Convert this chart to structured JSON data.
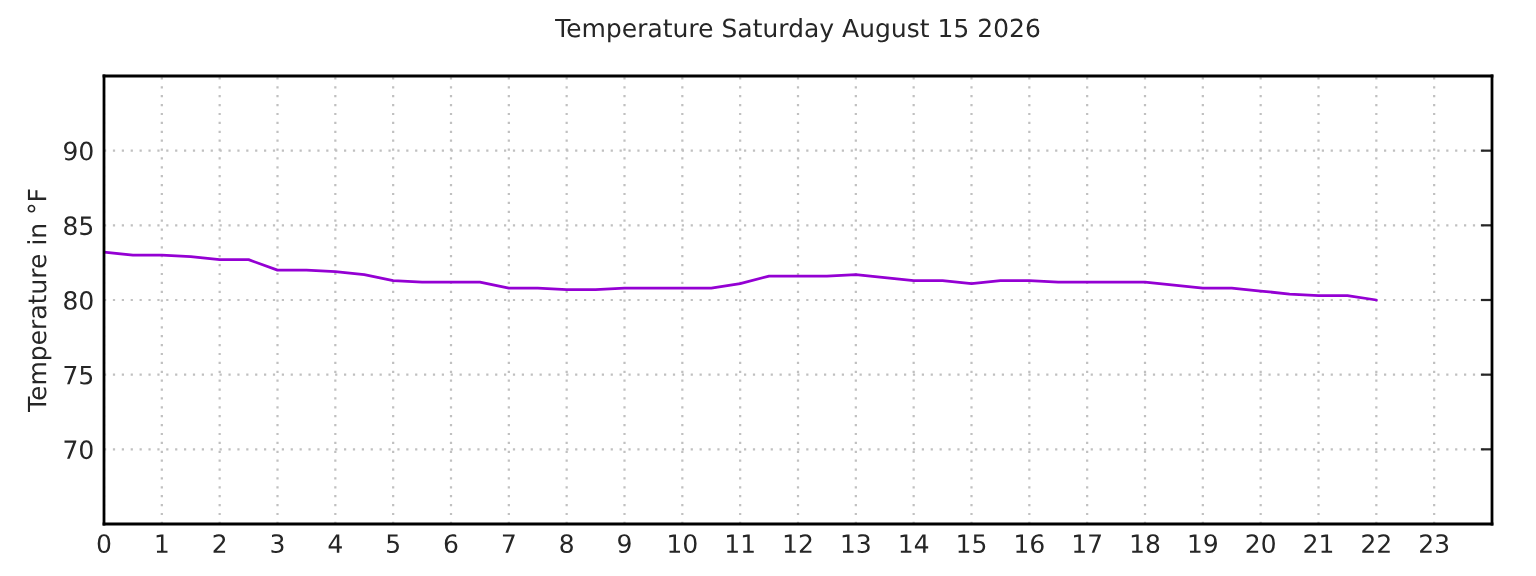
{
  "chart_data": {
    "type": "line",
    "title": "Temperature Saturday August 15 2026",
    "ylabel": "Temperature in °F",
    "x": [
      0,
      0.5,
      1,
      1.5,
      2,
      2.5,
      3,
      3.5,
      4,
      4.5,
      5,
      5.5,
      6,
      6.5,
      7,
      7.5,
      8,
      8.5,
      9,
      9.5,
      10,
      10.5,
      11,
      11.5,
      12,
      12.5,
      13,
      13.5,
      14,
      14.5,
      15,
      15.5,
      16,
      16.5,
      17,
      17.5,
      18,
      18.5,
      19,
      19.5,
      20,
      20.5,
      21,
      21.5,
      22
    ],
    "series": [
      {
        "color": "#9400d3",
        "values": [
          83.2,
          83.0,
          83.0,
          82.9,
          82.7,
          82.7,
          82.0,
          82.0,
          81.9,
          81.7,
          81.3,
          81.2,
          81.2,
          81.2,
          80.8,
          80.8,
          80.7,
          80.7,
          80.8,
          80.8,
          80.8,
          80.8,
          81.1,
          81.6,
          81.6,
          81.6,
          81.7,
          81.5,
          81.3,
          81.3,
          81.1,
          81.3,
          81.3,
          81.2,
          81.2,
          81.2,
          81.2,
          81.0,
          80.8,
          80.8,
          80.6,
          80.4,
          80.3,
          80.3,
          80.0
        ]
      }
    ],
    "xlim": [
      0,
      24
    ],
    "xticks": [
      0,
      1,
      2,
      3,
      4,
      5,
      6,
      7,
      8,
      9,
      10,
      11,
      12,
      13,
      14,
      15,
      16,
      17,
      18,
      19,
      20,
      21,
      22,
      23
    ],
    "ylim": [
      65,
      95
    ],
    "yticks": [
      70,
      75,
      80,
      85,
      90
    ],
    "grid": true,
    "marker": "none",
    "line_style": "solid"
  }
}
